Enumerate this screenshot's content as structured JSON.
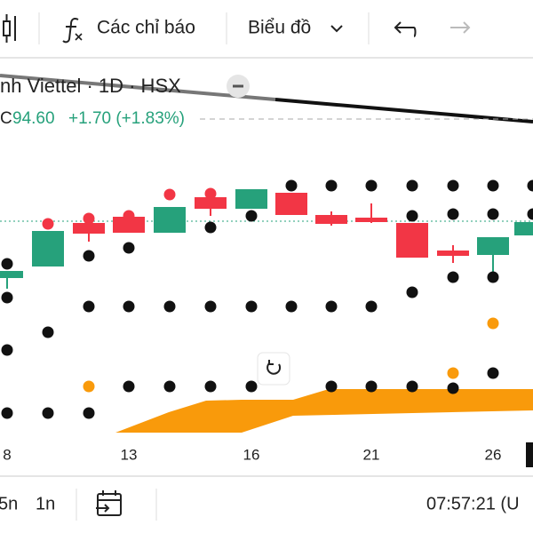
{
  "toolbar": {
    "indicators": "Các chỉ báo",
    "chart_type": "Biểu đồ"
  },
  "legend": {
    "title": "nh Viettel · 1D · HSX",
    "ohlc_prefix": "C",
    "price": "94.60",
    "change": "+1.70 (+1.83%)"
  },
  "x_axis": {
    "labels": [
      "8",
      "13",
      "16",
      "21",
      "26"
    ]
  },
  "bottom_bar": {
    "ranges": [
      "5n",
      "1n"
    ],
    "time": "07:57:21 (U"
  }
}
